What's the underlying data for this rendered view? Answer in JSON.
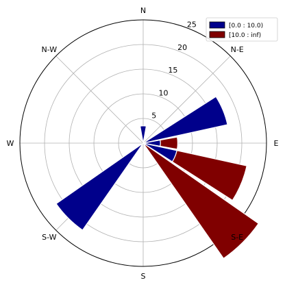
{
  "chart_data": {
    "type": "windrose",
    "directions": [
      "N",
      "N-E",
      "E",
      "S-E",
      "S",
      "S-W",
      "W",
      "N-W"
    ],
    "bin_count": 16,
    "bin_width_deg": 22.5,
    "r_ticks": [
      5,
      10,
      15,
      20,
      25
    ],
    "r_max": 25,
    "grid": true,
    "legend_position": "top-right",
    "series": [
      {
        "name": "[0.0 : 10.0)",
        "color": "#00008b",
        "bins": [
          {
            "direction_deg": 0,
            "value": 3.5
          },
          {
            "direction_deg": 67.5,
            "value": 17.5
          },
          {
            "direction_deg": 90,
            "value": 3.5
          },
          {
            "direction_deg": 112.5,
            "value": 7.0
          },
          {
            "direction_deg": 225,
            "value": 21.5
          }
        ]
      },
      {
        "name": "[10.0 : inf)",
        "color": "#800000",
        "bins": [
          {
            "direction_deg": 90,
            "from": 3.5,
            "value": 7.0
          },
          {
            "direction_deg": 112.5,
            "from": 7.0,
            "value": 21.5
          },
          {
            "direction_deg": 135,
            "value": 28.5
          }
        ]
      }
    ]
  }
}
